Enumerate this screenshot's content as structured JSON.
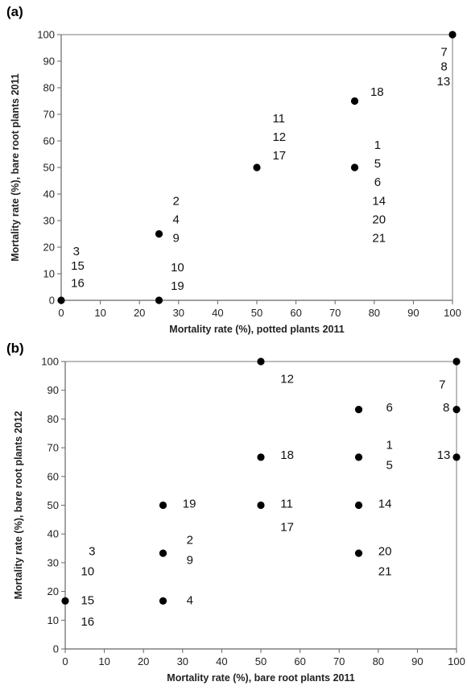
{
  "chart_data": [
    {
      "type": "scatter",
      "panel_label": "(a)",
      "xlabel": "Mortality rate (%), potted plants 2011",
      "ylabel": "Mortality rate (%), bare root plants 2011",
      "xlim": [
        0,
        100
      ],
      "ylim": [
        0,
        100
      ],
      "xticks": [
        "0",
        "10",
        "20",
        "30",
        "40",
        "50",
        "60",
        "70",
        "80",
        "90",
        "100"
      ],
      "yticks": [
        "0",
        "10",
        "20",
        "30",
        "40",
        "50",
        "60",
        "70",
        "80",
        "90",
        "100"
      ],
      "grid": false,
      "points": [
        {
          "x": 0,
          "y": 0
        },
        {
          "x": 25,
          "y": 0
        },
        {
          "x": 25,
          "y": 25
        },
        {
          "x": 50,
          "y": 50
        },
        {
          "x": 75,
          "y": 50
        },
        {
          "x": 75,
          "y": 75
        },
        {
          "x": 100,
          "y": 100
        }
      ],
      "point_labels": [
        {
          "text": "7",
          "x": 97,
          "y": 93.5
        },
        {
          "text": "8",
          "x": 97,
          "y": 88
        },
        {
          "text": "13",
          "x": 96,
          "y": 82.5
        },
        {
          "text": "18",
          "x": 79,
          "y": 78.5
        },
        {
          "text": "11",
          "x": 54,
          "y": 68.5
        },
        {
          "text": "12",
          "x": 54,
          "y": 61.5
        },
        {
          "text": "17",
          "x": 54,
          "y": 54.5
        },
        {
          "text": "1",
          "x": 80,
          "y": 58.5
        },
        {
          "text": "5",
          "x": 80,
          "y": 51.5
        },
        {
          "text": "6",
          "x": 80,
          "y": 44.5
        },
        {
          "text": "14",
          "x": 79.5,
          "y": 37.5
        },
        {
          "text": "20",
          "x": 79.5,
          "y": 30.5
        },
        {
          "text": "21",
          "x": 79.5,
          "y": 23.5
        },
        {
          "text": "2",
          "x": 28.5,
          "y": 37.5
        },
        {
          "text": "4",
          "x": 28.5,
          "y": 30.5
        },
        {
          "text": "9",
          "x": 28.5,
          "y": 23.5
        },
        {
          "text": "10",
          "x": 28,
          "y": 12.5
        },
        {
          "text": "19",
          "x": 28,
          "y": 5.5
        },
        {
          "text": "3",
          "x": 3,
          "y": 18.5
        },
        {
          "text": "15",
          "x": 2.5,
          "y": 13
        },
        {
          "text": "16",
          "x": 2.5,
          "y": 6.5
        }
      ]
    },
    {
      "type": "scatter",
      "panel_label": "(b)",
      "xlabel": "Mortality rate (%), bare root plants 2011",
      "ylabel": "Mortality rate (%), bare root plants 2012",
      "xlim": [
        0,
        100
      ],
      "ylim": [
        0,
        100
      ],
      "xticks": [
        "0",
        "10",
        "20",
        "30",
        "40",
        "50",
        "60",
        "70",
        "80",
        "90",
        "100"
      ],
      "yticks": [
        "0",
        "10",
        "20",
        "30",
        "40",
        "50",
        "60",
        "70",
        "80",
        "90",
        "100"
      ],
      "grid": false,
      "points": [
        {
          "x": 0,
          "y": 16.7
        },
        {
          "x": 25,
          "y": 16.7
        },
        {
          "x": 25,
          "y": 33.3
        },
        {
          "x": 25,
          "y": 50
        },
        {
          "x": 50,
          "y": 50
        },
        {
          "x": 50,
          "y": 66.7
        },
        {
          "x": 50,
          "y": 100
        },
        {
          "x": 75,
          "y": 33.3
        },
        {
          "x": 75,
          "y": 50
        },
        {
          "x": 75,
          "y": 66.7
        },
        {
          "x": 75,
          "y": 83.3
        },
        {
          "x": 100,
          "y": 66.7
        },
        {
          "x": 100,
          "y": 83.3
        },
        {
          "x": 100,
          "y": 100
        }
      ],
      "point_labels": [
        {
          "text": "12",
          "x": 55,
          "y": 94
        },
        {
          "text": "7",
          "x": 95.5,
          "y": 92
        },
        {
          "text": "6",
          "x": 82,
          "y": 84
        },
        {
          "text": "8",
          "x": 96.5,
          "y": 84
        },
        {
          "text": "1",
          "x": 82,
          "y": 71
        },
        {
          "text": "5",
          "x": 82,
          "y": 64
        },
        {
          "text": "18",
          "x": 55,
          "y": 67.5
        },
        {
          "text": "13",
          "x": 95,
          "y": 67.5
        },
        {
          "text": "19",
          "x": 30,
          "y": 50.5
        },
        {
          "text": "11",
          "x": 55,
          "y": 50.5
        },
        {
          "text": "14",
          "x": 80,
          "y": 50.5
        },
        {
          "text": "17",
          "x": 55,
          "y": 42.5
        },
        {
          "text": "2",
          "x": 31,
          "y": 38
        },
        {
          "text": "9",
          "x": 31,
          "y": 31
        },
        {
          "text": "3",
          "x": 6,
          "y": 34
        },
        {
          "text": "10",
          "x": 4,
          "y": 27
        },
        {
          "text": "20",
          "x": 80,
          "y": 34
        },
        {
          "text": "21",
          "x": 80,
          "y": 27
        },
        {
          "text": "15",
          "x": 4,
          "y": 17
        },
        {
          "text": "4",
          "x": 31,
          "y": 17
        },
        {
          "text": "16",
          "x": 4,
          "y": 9.5
        }
      ]
    }
  ]
}
